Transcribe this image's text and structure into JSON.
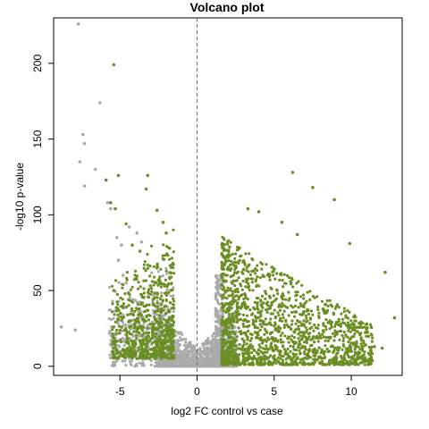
{
  "chart_data": {
    "type": "scatter",
    "title": "Volcano plot",
    "xlabel": "log2 FC control vs case",
    "ylabel": "-log10 p-value",
    "xlim": [
      -9.3,
      13.3
    ],
    "ylim": [
      -6,
      230
    ],
    "xticks": [
      -5,
      0,
      5,
      10
    ],
    "yticks": [
      0,
      50,
      100,
      150,
      200
    ],
    "grid": false,
    "reference_line_x": 0,
    "colors": {
      "significant": "#6b8e23",
      "not_significant": "#aaaaaa"
    },
    "series": [
      {
        "color": "#aaaaaa",
        "points": [
          [
            -7.7,
            226
          ],
          [
            -6.3,
            174
          ],
          [
            -7.4,
            153
          ],
          [
            -7.3,
            147
          ],
          [
            -7.6,
            135
          ],
          [
            -6.6,
            130
          ],
          [
            -7.3,
            119
          ],
          [
            -5.8,
            108
          ],
          [
            -5.6,
            104
          ],
          [
            -8.8,
            26
          ],
          [
            -7.9,
            24
          ],
          [
            -4.4,
            92
          ],
          [
            -5.2,
            85
          ],
          [
            -4.9,
            80
          ],
          [
            -5.1,
            70
          ],
          [
            -4.8,
            60
          ],
          [
            -4.6,
            55
          ],
          [
            -3.9,
            88
          ],
          [
            -3.6,
            82
          ]
        ]
      },
      {
        "color": "#6b8e23",
        "points": [
          [
            -5.4,
            199
          ],
          [
            -5.1,
            126
          ],
          [
            -3.2,
            126
          ],
          [
            -3.3,
            117
          ],
          [
            -5.9,
            123
          ],
          [
            -5.6,
            108
          ],
          [
            -5.3,
            104
          ],
          [
            -2.6,
            103
          ],
          [
            -4.6,
            94
          ],
          [
            -5.4,
            26
          ],
          [
            -5.4,
            50
          ],
          [
            -4.2,
            80
          ],
          [
            -3.7,
            76
          ],
          [
            -2.2,
            95
          ],
          [
            -2.0,
            88
          ],
          [
            6.2,
            128
          ],
          [
            7.5,
            118
          ],
          [
            8.9,
            110
          ],
          [
            3.3,
            104
          ],
          [
            4.0,
            102
          ],
          [
            9.9,
            81
          ],
          [
            12.2,
            62
          ],
          [
            12.8,
            32
          ],
          [
            5.5,
            95
          ],
          [
            6.5,
            87
          ],
          [
            11.0,
            28
          ],
          [
            10.3,
            14
          ],
          [
            11.5,
            13
          ],
          [
            12.0,
            12
          ]
        ]
      }
    ]
  }
}
